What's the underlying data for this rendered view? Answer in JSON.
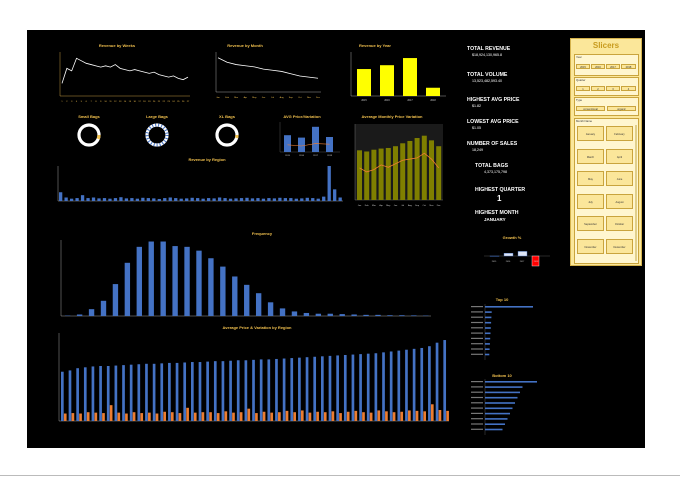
{
  "titles": {
    "rev_weeks": "Revenue by Weeks",
    "rev_month": "Revenue by Month",
    "rev_year": "Revenue by Year",
    "small_bags": "Small Bags",
    "large_bags": "Large Bags",
    "xl_bags": "XL Bags",
    "avg_price_var": "AVG Price/Variation",
    "avg_monthly": "Average Monthly Price Variation",
    "rev_region": "Revenue by Region",
    "frequency": "Frequency",
    "avg_price_region": "Average Price & Variation by Region",
    "growth": "Growth %",
    "top10": "Top 10",
    "bottom10": "Bottom 10"
  },
  "kpis": [
    {
      "label": "TOTAL REVENUE",
      "value": "$18,924,130,965.8"
    },
    {
      "label": "TOTAL VOLUME",
      "value": "13,523,482,593.40"
    },
    {
      "label": "HIGHEST AVG PRICE",
      "value": "$1.82"
    },
    {
      "label": "LOWEST AVG PRICE",
      "value": "$1.05"
    },
    {
      "label": "NUMBER OF SALES",
      "value": "18,249"
    },
    {
      "label": "TOTAL  BAGS",
      "value": "4,373,175,798"
    },
    {
      "label": "HIGHEST QUARTER",
      "value": "1"
    },
    {
      "label": "HIGHEST MONTH",
      "value": "JANUARY"
    }
  ],
  "slicers": {
    "title": "Slicers",
    "year": {
      "label": "Year",
      "options": [
        "2015",
        "2016",
        "2017",
        "2018"
      ]
    },
    "quarter": {
      "label": "Quarter",
      "options": [
        "1",
        "2",
        "3",
        "4"
      ]
    },
    "type": {
      "label": "Type",
      "options": [
        "conventional",
        "organic"
      ]
    },
    "month": {
      "label": "Month Name",
      "options": [
        "January",
        "February",
        "March",
        "April",
        "May",
        "June",
        "July",
        "August",
        "September",
        "October",
        "November",
        "December"
      ]
    }
  },
  "colors": {
    "accent": "#f2c14e",
    "blue": "#4472c4",
    "orange": "#ed7d31",
    "yellow": "#ffff00",
    "olive": "#7f7f00",
    "background": "#000000"
  },
  "chart_data": [
    {
      "type": "line",
      "title": "Revenue by Weeks",
      "x": [
        1,
        2,
        3,
        4,
        5,
        6,
        7,
        8,
        9,
        10,
        11,
        12,
        13,
        14,
        15,
        16,
        17,
        18,
        19,
        20,
        21,
        22,
        23,
        24,
        25,
        26,
        27
      ],
      "values": [
        40,
        52,
        50,
        60,
        58,
        56,
        55,
        54,
        53,
        54,
        53,
        55,
        52,
        51,
        50,
        51,
        50,
        49,
        48,
        49,
        47,
        46,
        45,
        46,
        44,
        43,
        45
      ]
    },
    {
      "type": "line",
      "title": "Revenue by Month",
      "categories": [
        "Jan",
        "Feb",
        "Mar",
        "Apr",
        "May",
        "Jun",
        "Jul",
        "Aug",
        "Sep",
        "Oct",
        "Nov",
        "Dec"
      ],
      "values": [
        60,
        56,
        54,
        53,
        52,
        50,
        49,
        48,
        46,
        44,
        43,
        42
      ]
    },
    {
      "type": "bar",
      "title": "Revenue by Year",
      "categories": [
        "2015",
        "2016",
        "2017",
        "2018"
      ],
      "values": [
        4900000000,
        5600000000,
        6900000000,
        1500000000
      ]
    },
    {
      "type": "bar",
      "title": "AVG Price/Variation",
      "categories": [
        "2015",
        "2016",
        "2017",
        "2018"
      ],
      "values": [
        1.38,
        1.34,
        1.52,
        1.35
      ],
      "variation": [
        0.12,
        0.1,
        0.14,
        0.13
      ]
    },
    {
      "type": "line",
      "title": "Average Monthly Price Variation",
      "categories": [
        "Jan",
        "Feb",
        "Mar",
        "Apr",
        "May",
        "Jun",
        "Jul",
        "Aug",
        "Sep",
        "Oct",
        "Nov",
        "Dec"
      ],
      "series": [
        {
          "name": "Average",
          "values": [
            1.35,
            1.33,
            1.36,
            1.38,
            1.39,
            1.42,
            1.47,
            1.51,
            1.56,
            1.6,
            1.52,
            1.42
          ]
        },
        {
          "name": "Variation",
          "values": [
            1.05,
            0.98,
            1.02,
            1.1,
            1.06,
            1.12,
            1.18,
            1.2,
            1.22,
            1.3,
            1.2,
            1.05
          ]
        }
      ]
    },
    {
      "type": "bar",
      "title": "Revenue by Region",
      "values": [
        3,
        1.2,
        0.8,
        1,
        2,
        1,
        1.2,
        0.9,
        1,
        0.8,
        1,
        1.3,
        0.9,
        1,
        0.8,
        1.1,
        1,
        0.9,
        0.7,
        1,
        1.2,
        1,
        0.8,
        0.9,
        1.1,
        1,
        0.8,
        1,
        0.9,
        1.2,
        1,
        0.8,
        0.9,
        1,
        1.1,
        0.9,
        1,
        0.8,
        1,
        0.9,
        1.1,
        1,
        1,
        0.8,
        0.9,
        1.1,
        1,
        0.8,
        1.5,
        12,
        4,
        1.2
      ]
    },
    {
      "type": "bar",
      "title": "Frequency",
      "values": [
        5,
        20,
        90,
        200,
        420,
        700,
        910,
        980,
        980,
        920,
        910,
        860,
        760,
        650,
        520,
        410,
        300,
        180,
        100,
        60,
        40,
        30,
        30,
        25,
        20,
        15,
        15,
        10,
        10,
        8,
        5
      ]
    },
    {
      "type": "bar",
      "title": "Average Price & Variation by Region",
      "series": [
        {
          "name": "Average",
          "values": [
            1.12,
            1.15,
            1.2,
            1.22,
            1.24,
            1.25,
            1.25,
            1.26,
            1.27,
            1.28,
            1.29,
            1.3,
            1.3,
            1.31,
            1.32,
            1.32,
            1.33,
            1.34,
            1.34,
            1.35,
            1.36,
            1.36,
            1.37,
            1.38,
            1.38,
            1.39,
            1.4,
            1.4,
            1.41,
            1.42,
            1.43,
            1.44,
            1.45,
            1.46,
            1.47,
            1.48,
            1.49,
            1.5,
            1.51,
            1.52,
            1.53,
            1.54,
            1.56,
            1.58,
            1.6,
            1.62,
            1.64,
            1.66,
            1.7,
            1.78,
            1.84
          ]
        },
        {
          "name": "Variation",
          "values": [
            0.17,
            0.18,
            0.17,
            0.2,
            0.19,
            0.18,
            0.36,
            0.19,
            0.17,
            0.2,
            0.18,
            0.19,
            0.17,
            0.21,
            0.2,
            0.18,
            0.3,
            0.19,
            0.2,
            0.2,
            0.18,
            0.22,
            0.19,
            0.2,
            0.28,
            0.18,
            0.21,
            0.19,
            0.2,
            0.23,
            0.2,
            0.24,
            0.19,
            0.21,
            0.2,
            0.22,
            0.18,
            0.21,
            0.23,
            0.2,
            0.19,
            0.24,
            0.22,
            0.2,
            0.21,
            0.24,
            0.23,
            0.22,
            0.38,
            0.25,
            0.23
          ]
        }
      ]
    },
    {
      "type": "bar",
      "title": "Growth %",
      "categories": [
        "2015",
        "2016",
        "2017",
        "2018"
      ],
      "values": [
        0,
        14,
        23,
        -78
      ]
    }
  ]
}
